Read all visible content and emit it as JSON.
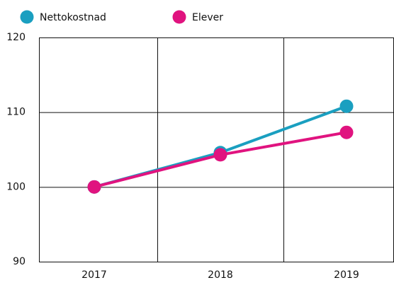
{
  "chart_data": {
    "type": "line",
    "categories": [
      "2017",
      "2018",
      "2019"
    ],
    "series": [
      {
        "name": "Nettokostnad",
        "color": "#1a9fc0",
        "values": [
          100,
          104.6,
          110.8
        ]
      },
      {
        "name": "Elever",
        "color": "#e0137f",
        "values": [
          100,
          104.3,
          107.3
        ]
      }
    ],
    "ylim": [
      90,
      120
    ],
    "yticks": [
      90,
      100,
      110,
      120
    ],
    "grid": true
  }
}
